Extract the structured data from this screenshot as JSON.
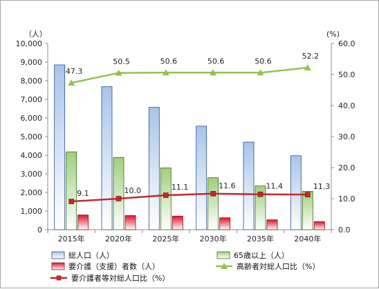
{
  "chart_data": {
    "type": "bar+line",
    "categories": [
      "2015年",
      "2020年",
      "2025年",
      "2030年",
      "2035年",
      "2040年"
    ],
    "y_left": {
      "unit": "（人）",
      "ylim": [
        0,
        10000
      ],
      "ticks": [
        "0",
        "1,000",
        "2,000",
        "3,000",
        "4,000",
        "5,000",
        "6,000",
        "7,000",
        "8,000",
        "9,000",
        "10,000"
      ]
    },
    "y_right": {
      "unit": "(%)",
      "ylim": [
        0,
        60
      ],
      "ticks": [
        "0.0",
        "10.0",
        "20.0",
        "30.0",
        "40.0",
        "50.0",
        "60.0"
      ]
    },
    "bar_series": [
      {
        "name": "総人口（人）",
        "values": [
          8850,
          7680,
          6570,
          5560,
          4700,
          3970
        ],
        "color_top": "#a9c4ea",
        "color_bottom": "#ffffff",
        "edge": "#2b4f86"
      },
      {
        "name": "65歳以上（人）",
        "values": [
          4180,
          3880,
          3320,
          2790,
          2350,
          2060
        ],
        "color_top": "#9fce7c",
        "color_bottom": "#ffffff",
        "edge": "#3b6b26"
      },
      {
        "name": "要介護（支援）者数（人）",
        "values": [
          790,
          760,
          730,
          640,
          530,
          430
        ],
        "color_top": "#e0142a",
        "color_bottom": "#ffffff",
        "edge": "#8b0f1b"
      }
    ],
    "line_series": [
      {
        "name": "高齢者対総人口比（%）",
        "values": [
          47.3,
          50.5,
          50.6,
          50.6,
          50.6,
          52.2
        ],
        "labels": [
          "47.3",
          "50.5",
          "50.6",
          "50.6",
          "50.6",
          "52.2"
        ],
        "color": "#92c350",
        "marker": "triangle"
      },
      {
        "name": "要介護者等対総人口比（%）",
        "values": [
          9.1,
          10.0,
          11.1,
          11.6,
          11.4,
          11.3
        ],
        "labels": [
          "9.1",
          "10.0",
          "11.1",
          "11.6",
          "11.4",
          "11.3"
        ],
        "color": "#c0282d",
        "marker": "square"
      }
    ],
    "legend_position": "bottom",
    "grid": false
  }
}
